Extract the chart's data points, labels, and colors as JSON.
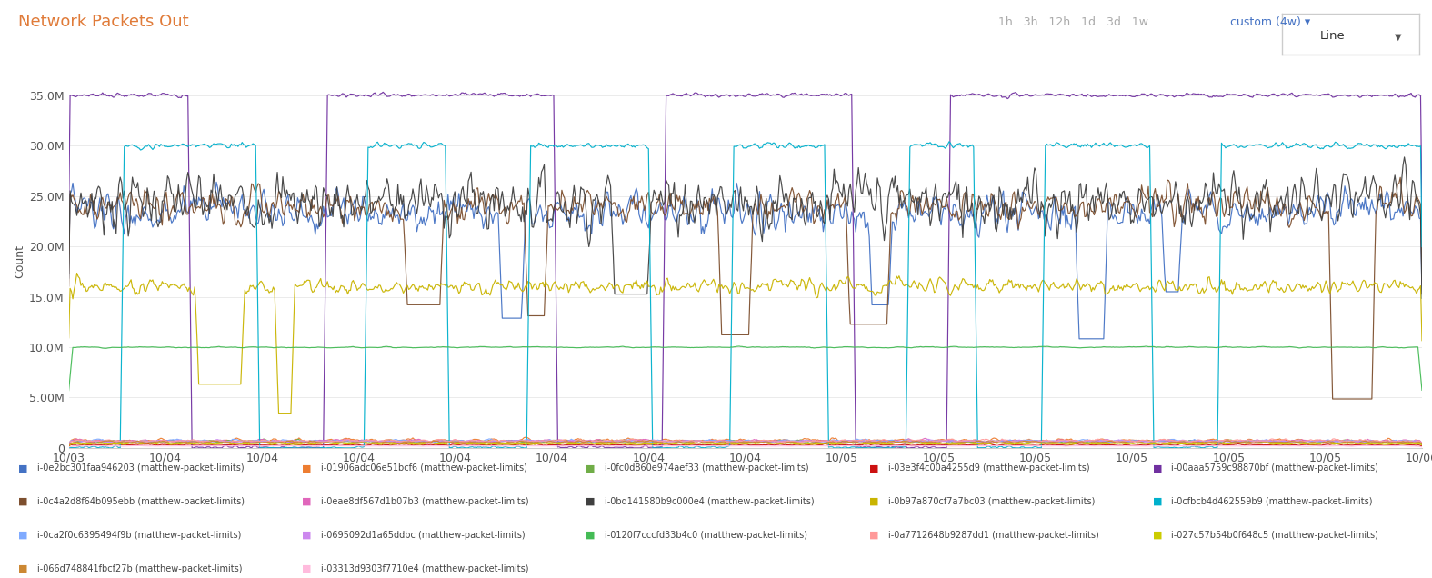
{
  "title": "Network Packets Out",
  "ylabel": "Count",
  "background_color": "#ffffff",
  "plot_bg_color": "#ffffff",
  "grid_color": "#e8e8e8",
  "title_color": "#e07b39",
  "ylabel_color": "#555555",
  "tick_color": "#555555",
  "ytick_values": [
    0,
    5000000,
    10000000,
    15000000,
    20000000,
    25000000,
    30000000,
    35000000
  ],
  "ytick_labels": [
    "0",
    "5.00M",
    "10.0M",
    "15.0M",
    "20.0M",
    "25.0M",
    "30.0M",
    "35.0M"
  ],
  "xtick_labels": [
    "10/03",
    "10/04",
    "10/04",
    "10/04",
    "10/04",
    "10/04",
    "10/04",
    "10/04",
    "10/05",
    "10/05",
    "10/05",
    "10/05",
    "10/05",
    "10/05",
    "10/06"
  ],
  "ymax": 37000000,
  "inactive_btn_color": "#aaaaaa",
  "active_btn_color": "#4472c4",
  "series": [
    {
      "label": "i-0e2bc301faa946203 (matthew-packet-limits)",
      "color": "#4472c4"
    },
    {
      "label": "i-01906adc06e51bcf6 (matthew-packet-limits)",
      "color": "#ed7d31"
    },
    {
      "label": "i-0fc0d860e974aef33 (matthew-packet-limits)",
      "color": "#70ad47"
    },
    {
      "label": "i-03e3f4c00a4255d9 (matthew-packet-limits)",
      "color": "#cc1111"
    },
    {
      "label": "i-00aaa5759c98870bf (matthew-packet-limits)",
      "color": "#7030a0"
    },
    {
      "label": "i-0c4a2d8f64b095ebb (matthew-packet-limits)",
      "color": "#7d4f2e"
    },
    {
      "label": "i-0eae8df567d1b07b3 (matthew-packet-limits)",
      "color": "#e066bb"
    },
    {
      "label": "i-0bd141580b9c000e4 (matthew-packet-limits)",
      "color": "#404040"
    },
    {
      "label": "i-0b97a870cf7a7bc03 (matthew-packet-limits)",
      "color": "#c9b400"
    },
    {
      "label": "i-0cfbcb4d462559b9 (matthew-packet-limits)",
      "color": "#00b0cc"
    },
    {
      "label": "i-0ca2f0c6395494f9b (matthew-packet-limits)",
      "color": "#7faaff"
    },
    {
      "label": "i-0695092d1a65ddbc (matthew-packet-limits)",
      "color": "#cc88ee"
    },
    {
      "label": "i-0120f7cccfd33b4c0 (matthew-packet-limits)",
      "color": "#44bb55"
    },
    {
      "label": "i-0a7712648b9287dd1 (matthew-packet-limits)",
      "color": "#ff9999"
    },
    {
      "label": "i-027c57b54b0f648c5 (matthew-packet-limits)",
      "color": "#cccc00"
    },
    {
      "label": "i-066d748841fbcf27b (matthew-packet-limits)",
      "color": "#cc8833"
    },
    {
      "label": "i-03313d9303f7710e4 (matthew-packet-limits)",
      "color": "#ffbbdd"
    }
  ]
}
